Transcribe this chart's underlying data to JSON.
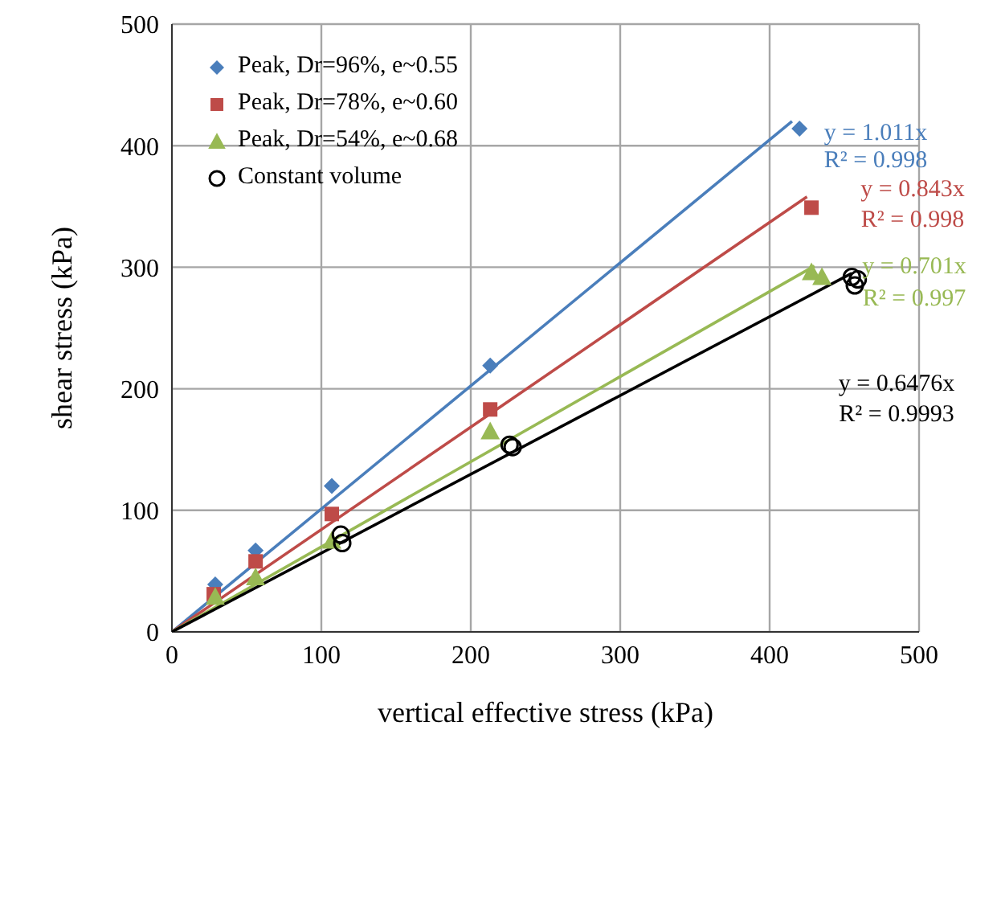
{
  "chart_data": {
    "type": "scatter",
    "xlabel": "vertical effective stress (kPa)",
    "ylabel": "shear stress (kPa)",
    "xlim": [
      0,
      500
    ],
    "xticks": [
      0,
      100,
      200,
      300,
      400,
      500
    ],
    "ylim": [
      0,
      500
    ],
    "yticks": [
      0,
      100,
      200,
      300,
      400,
      500
    ],
    "grid": true,
    "legend": "top left",
    "series": [
      {
        "name": "Peak, Dr=96%, e~0.55",
        "color": "#4a7ebb",
        "marker": "diamond",
        "x": [
          29,
          56,
          107,
          213,
          420
        ],
        "values": [
          39,
          67,
          120,
          219,
          414
        ]
      },
      {
        "name": "Peak, Dr=78%, e~0.60",
        "color": "#be4b48",
        "marker": "square",
        "x": [
          28,
          56,
          107,
          213,
          428
        ],
        "values": [
          31,
          58,
          97,
          183,
          349
        ]
      },
      {
        "name": "Peak, Dr=54%, e~0.68",
        "color": "#98b954",
        "marker": "triangle",
        "x": [
          29,
          56,
          107,
          213,
          428,
          435
        ],
        "values": [
          29,
          45,
          75,
          165,
          296,
          292
        ]
      },
      {
        "name": "Constant volume",
        "color": "#000000",
        "marker": "circle",
        "x": [
          113,
          114,
          226,
          228,
          455,
          457,
          459
        ],
        "values": [
          80,
          73,
          154,
          152,
          292,
          285,
          290
        ]
      },
      {
        "type": "line",
        "color": "#4a7ebb",
        "marker": "none",
        "x": [
          0,
          415
        ],
        "values": [
          0,
          420
        ]
      },
      {
        "type": "line",
        "color": "#be4b48",
        "marker": "none",
        "x": [
          0,
          425
        ],
        "values": [
          0,
          358
        ]
      },
      {
        "type": "line",
        "color": "#98b954",
        "marker": "none",
        "x": [
          0,
          430
        ],
        "values": [
          0,
          301
        ]
      },
      {
        "type": "line",
        "color": "#000000",
        "marker": "none",
        "x": [
          0,
          455
        ],
        "values": [
          0,
          295
        ]
      }
    ],
    "annotations": [
      "y = 1.011x",
      "R² = 0.998",
      "y = 0.843x",
      "R² = 0.998",
      "y = 0.701x",
      "R² = 0.997",
      "y = 0.6476x",
      "R² = 0.9993"
    ]
  }
}
